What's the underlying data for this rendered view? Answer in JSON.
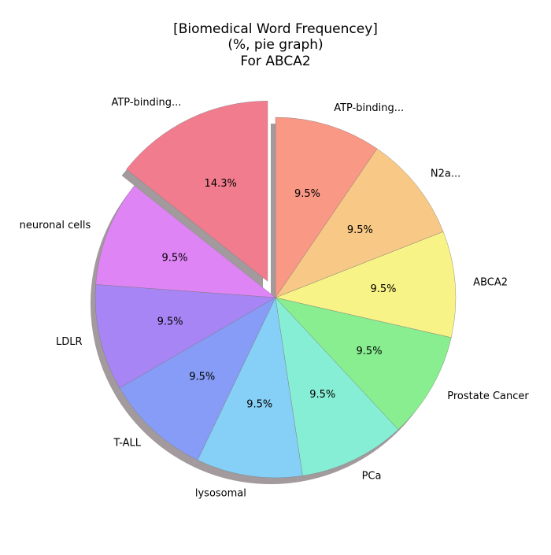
{
  "chart_data": {
    "type": "pie",
    "title": [
      "[Biomedical Word Frequencey]",
      "(%, pie graph)",
      "For ABCA2"
    ],
    "slices": [
      {
        "label": "ATP-binding...",
        "value": 14.3,
        "pct_label": "14.3%",
        "color": "#f17c8e",
        "exploded": true
      },
      {
        "label": "neuronal cells",
        "value": 9.5,
        "pct_label": "9.5%",
        "color": "#df84f5",
        "exploded": false
      },
      {
        "label": "LDLR",
        "value": 9.5,
        "pct_label": "9.5%",
        "color": "#a785f5",
        "exploded": false
      },
      {
        "label": "T-ALL",
        "value": 9.5,
        "pct_label": "9.5%",
        "color": "#879cf6",
        "exploded": false
      },
      {
        "label": "lysosomal",
        "value": 9.5,
        "pct_label": "9.5%",
        "color": "#86cff6",
        "exploded": false
      },
      {
        "label": "PCa",
        "value": 9.5,
        "pct_label": "9.5%",
        "color": "#87eed6",
        "exploded": false
      },
      {
        "label": "Prostate Cancer",
        "value": 9.5,
        "pct_label": "9.5%",
        "color": "#88ee90",
        "exploded": false
      },
      {
        "label": "ABCA2",
        "value": 9.5,
        "pct_label": "9.5%",
        "color": "#f8f386",
        "exploded": false
      },
      {
        "label": "N2a...",
        "value": 9.5,
        "pct_label": "9.5%",
        "color": "#f8c886",
        "exploded": false
      },
      {
        "label": "ATP-binding...",
        "value": 9.5,
        "pct_label": "9.5%",
        "color": "#f99885",
        "exploded": false
      }
    ],
    "start_angle_deg": 90,
    "direction": "counterclockwise",
    "shadow": true
  }
}
